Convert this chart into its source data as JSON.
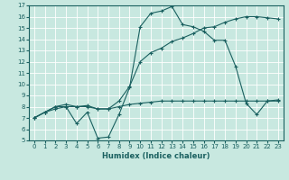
{
  "xlabel": "Humidex (Indice chaleur)",
  "xlim": [
    -0.5,
    23.5
  ],
  "ylim": [
    5,
    17
  ],
  "xticks": [
    0,
    1,
    2,
    3,
    4,
    5,
    6,
    7,
    8,
    9,
    10,
    11,
    12,
    13,
    14,
    15,
    16,
    17,
    18,
    19,
    20,
    21,
    22,
    23
  ],
  "yticks": [
    5,
    6,
    7,
    8,
    9,
    10,
    11,
    12,
    13,
    14,
    15,
    16,
    17
  ],
  "bg_color": "#c8e8e0",
  "line_color": "#1a6060",
  "grid_color": "#ffffff",
  "line1_x": [
    0,
    1,
    2,
    3,
    4,
    5,
    6,
    7,
    8,
    9,
    10,
    11,
    12,
    13,
    14,
    15,
    16,
    17,
    18,
    19,
    20,
    21,
    22,
    23
  ],
  "line1_y": [
    7.0,
    7.5,
    8.0,
    8.0,
    6.5,
    7.5,
    5.2,
    5.3,
    7.3,
    9.7,
    15.1,
    16.3,
    16.5,
    16.9,
    15.3,
    15.1,
    14.7,
    13.9,
    13.9,
    11.6,
    8.3,
    7.3,
    8.5,
    8.5
  ],
  "line2_x": [
    0,
    1,
    2,
    3,
    4,
    5,
    6,
    7,
    8,
    9,
    10,
    11,
    12,
    13,
    14,
    15,
    16,
    17,
    18,
    19,
    20,
    21,
    22,
    23
  ],
  "line2_y": [
    7.0,
    7.5,
    8.0,
    8.2,
    8.0,
    8.1,
    7.8,
    7.8,
    8.5,
    9.8,
    12.0,
    12.8,
    13.2,
    13.8,
    14.1,
    14.5,
    15.0,
    15.1,
    15.5,
    15.8,
    16.0,
    16.0,
    15.9,
    15.8
  ],
  "line3_x": [
    0,
    1,
    2,
    3,
    4,
    5,
    6,
    7,
    8,
    9,
    10,
    11,
    12,
    13,
    14,
    15,
    16,
    17,
    18,
    19,
    20,
    21,
    22,
    23
  ],
  "line3_y": [
    7.0,
    7.5,
    7.8,
    8.0,
    8.0,
    8.0,
    7.8,
    7.8,
    8.0,
    8.2,
    8.3,
    8.4,
    8.5,
    8.5,
    8.5,
    8.5,
    8.5,
    8.5,
    8.5,
    8.5,
    8.5,
    8.5,
    8.5,
    8.6
  ],
  "marker": "+"
}
